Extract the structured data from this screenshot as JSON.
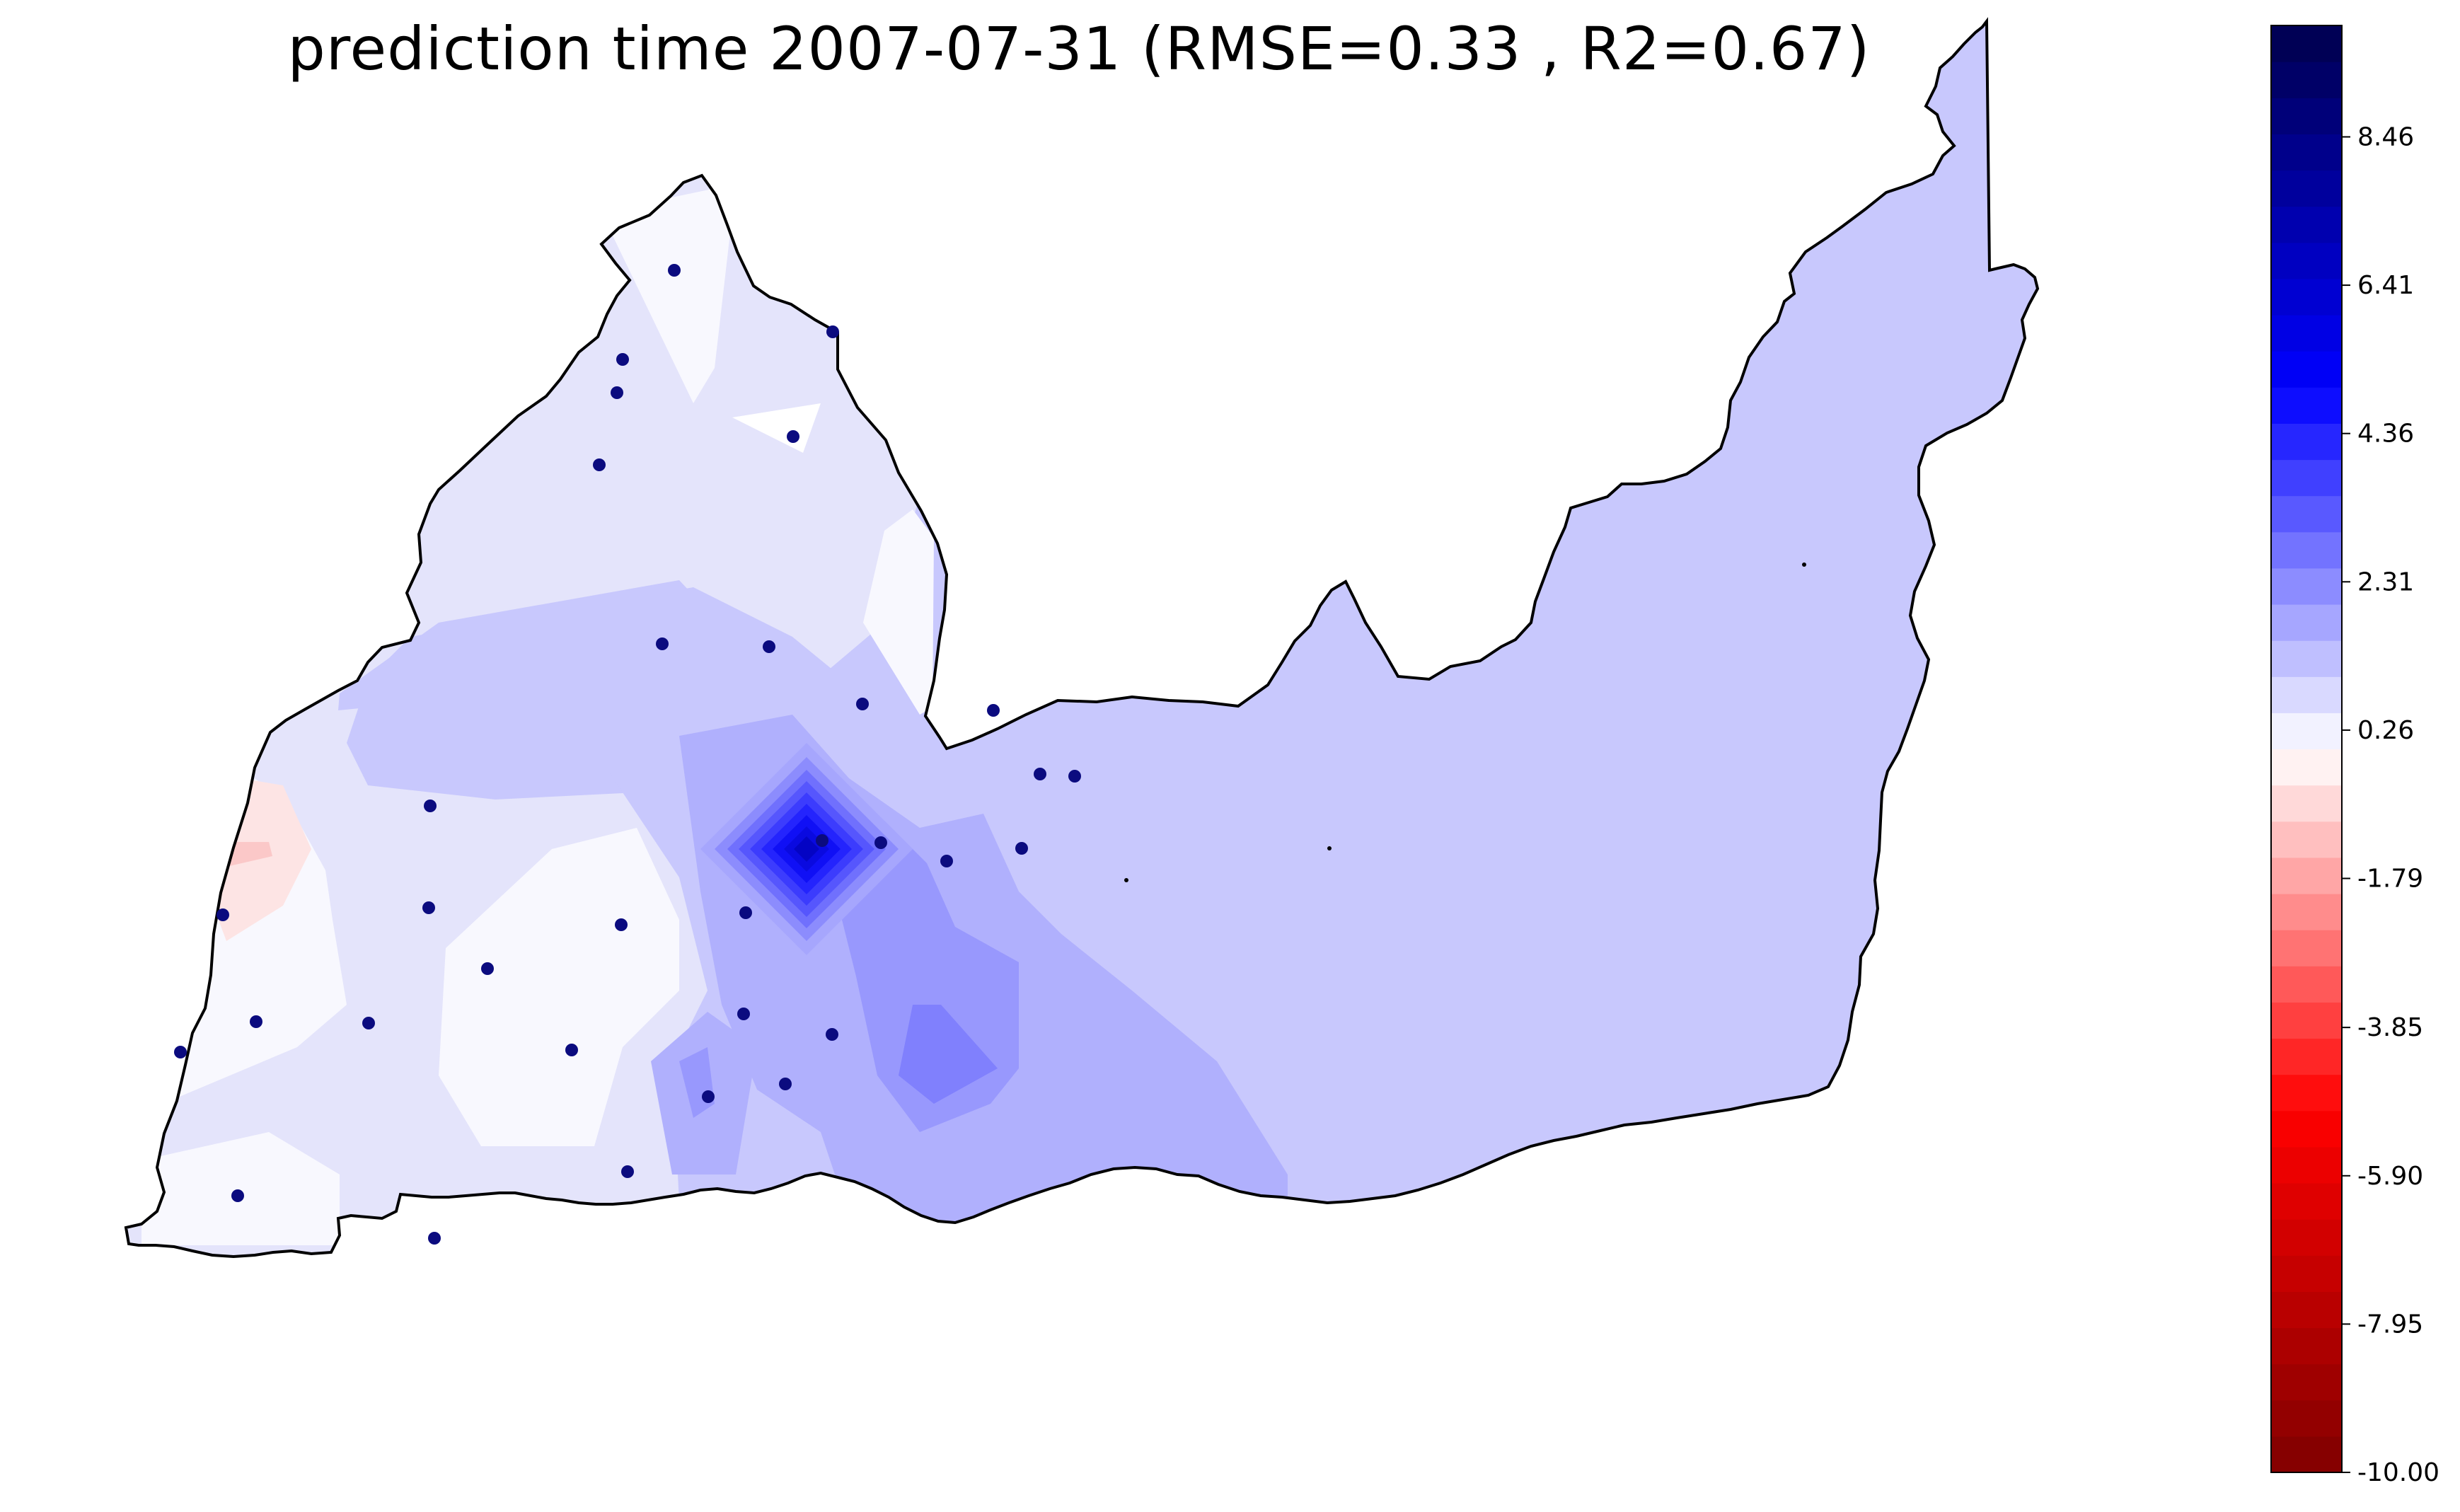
{
  "title": "prediction time 2007-07-31 (RMSE=0.33 , R2=0.67)",
  "colorbar": {
    "range": [
      -10.0,
      10.0
    ],
    "tick_labels": [
      "8.46",
      "6.41",
      "4.36",
      "2.31",
      "0.26",
      "-1.79",
      "-3.85",
      "-5.90",
      "-7.95",
      "-10.00"
    ],
    "tick_values": [
      8.46,
      6.41,
      4.36,
      2.31,
      0.26,
      -1.79,
      -3.85,
      -5.9,
      -7.95,
      -10.0
    ],
    "colormap": "seismic_r",
    "levels": 40
  },
  "map": {
    "boundary_color": "#000000",
    "station_color": "#0b0b7f",
    "station_count": 30
  }
}
